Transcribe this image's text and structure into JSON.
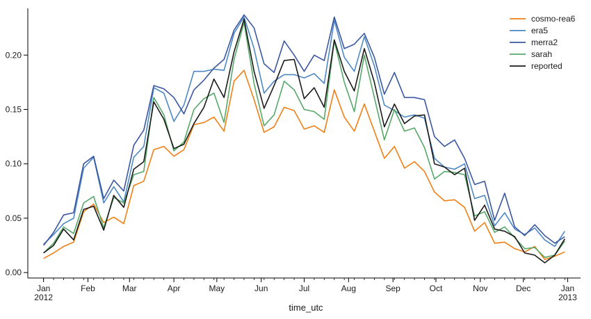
{
  "chart_data": {
    "type": "line",
    "title": "",
    "xlabel": "time_utc",
    "ylabel": "",
    "ylim": [
      -0.005,
      0.243
    ],
    "yticks": [
      0.0,
      0.05,
      0.1,
      0.15,
      0.2
    ],
    "ytick_labels": [
      "0.00",
      "0.05",
      "0.10",
      "0.15",
      "0.20"
    ],
    "xlim": [
      "2011-12-21",
      "2013-01-10"
    ],
    "xticks": [
      {
        "date": "2012-01-01",
        "label": "Jan",
        "sublabel": "2012"
      },
      {
        "date": "2012-02-01",
        "label": "Feb",
        "sublabel": ""
      },
      {
        "date": "2012-03-01",
        "label": "Mar",
        "sublabel": ""
      },
      {
        "date": "2012-04-01",
        "label": "Apr",
        "sublabel": ""
      },
      {
        "date": "2012-05-01",
        "label": "May",
        "sublabel": ""
      },
      {
        "date": "2012-06-01",
        "label": "Jun",
        "sublabel": ""
      },
      {
        "date": "2012-07-01",
        "label": "Jul",
        "sublabel": ""
      },
      {
        "date": "2012-08-01",
        "label": "Aug",
        "sublabel": ""
      },
      {
        "date": "2012-09-01",
        "label": "Sep",
        "sublabel": ""
      },
      {
        "date": "2012-10-01",
        "label": "Oct",
        "sublabel": ""
      },
      {
        "date": "2012-11-01",
        "label": "Nov",
        "sublabel": ""
      },
      {
        "date": "2012-12-01",
        "label": "Dec",
        "sublabel": ""
      },
      {
        "date": "2013-01-01",
        "label": "Jan",
        "sublabel": "2013"
      }
    ],
    "grid": false,
    "legend_position": "top-right",
    "x": [
      "2012-01-01",
      "2012-01-08",
      "2012-01-15",
      "2012-01-22",
      "2012-01-29",
      "2012-02-05",
      "2012-02-12",
      "2012-02-19",
      "2012-02-26",
      "2012-03-04",
      "2012-03-11",
      "2012-03-18",
      "2012-03-25",
      "2012-04-01",
      "2012-04-08",
      "2012-04-15",
      "2012-04-22",
      "2012-04-29",
      "2012-05-06",
      "2012-05-13",
      "2012-05-20",
      "2012-05-27",
      "2012-06-03",
      "2012-06-10",
      "2012-06-17",
      "2012-06-24",
      "2012-07-01",
      "2012-07-08",
      "2012-07-15",
      "2012-07-22",
      "2012-07-29",
      "2012-08-05",
      "2012-08-12",
      "2012-08-19",
      "2012-08-26",
      "2012-09-02",
      "2012-09-09",
      "2012-09-16",
      "2012-09-23",
      "2012-09-30",
      "2012-10-07",
      "2012-10-14",
      "2012-10-21",
      "2012-10-28",
      "2012-11-04",
      "2012-11-11",
      "2012-11-18",
      "2012-11-25",
      "2012-12-02",
      "2012-12-09",
      "2012-12-16",
      "2012-12-23",
      "2012-12-30"
    ],
    "series": [
      {
        "name": "cosmo-rea6",
        "color": "#f07f16",
        "values": [
          0.013,
          0.018,
          0.024,
          0.028,
          0.056,
          0.063,
          0.046,
          0.051,
          0.045,
          0.08,
          0.084,
          0.113,
          0.116,
          0.107,
          0.113,
          0.136,
          0.138,
          0.143,
          0.13,
          0.176,
          0.186,
          0.159,
          0.129,
          0.134,
          0.152,
          0.149,
          0.132,
          0.135,
          0.129,
          0.168,
          0.143,
          0.13,
          0.155,
          0.13,
          0.105,
          0.116,
          0.096,
          0.102,
          0.093,
          0.074,
          0.066,
          0.067,
          0.06,
          0.038,
          0.046,
          0.027,
          0.028,
          0.022,
          0.019,
          0.024,
          0.012,
          0.015,
          0.019
        ]
      },
      {
        "name": "era5",
        "color": "#4d88c4",
        "values": [
          0.026,
          0.035,
          0.045,
          0.05,
          0.096,
          0.106,
          0.064,
          0.079,
          0.065,
          0.106,
          0.116,
          0.17,
          0.165,
          0.139,
          0.154,
          0.185,
          0.185,
          0.187,
          0.186,
          0.22,
          0.235,
          0.206,
          0.165,
          0.176,
          0.182,
          0.182,
          0.179,
          0.183,
          0.174,
          0.232,
          0.198,
          0.185,
          0.217,
          0.19,
          0.154,
          0.149,
          0.143,
          0.145,
          0.142,
          0.105,
          0.097,
          0.095,
          0.1,
          0.068,
          0.071,
          0.043,
          0.055,
          0.04,
          0.035,
          0.041,
          0.03,
          0.024,
          0.038
        ]
      },
      {
        "name": "merra2",
        "color": "#3a56a0",
        "values": [
          0.025,
          0.037,
          0.053,
          0.055,
          0.1,
          0.107,
          0.068,
          0.085,
          0.075,
          0.117,
          0.131,
          0.172,
          0.169,
          0.161,
          0.146,
          0.168,
          0.177,
          0.188,
          0.196,
          0.223,
          0.237,
          0.225,
          0.192,
          0.184,
          0.213,
          0.2,
          0.185,
          0.2,
          0.195,
          0.235,
          0.206,
          0.21,
          0.22,
          0.198,
          0.164,
          0.184,
          0.161,
          0.161,
          0.159,
          0.125,
          0.116,
          0.122,
          0.105,
          0.081,
          0.084,
          0.048,
          0.073,
          0.042,
          0.034,
          0.044,
          0.034,
          0.027,
          0.033
        ]
      },
      {
        "name": "sarah",
        "color": "#55a868",
        "values": [
          0.018,
          0.027,
          0.042,
          0.036,
          0.064,
          0.07,
          0.041,
          0.069,
          0.064,
          0.09,
          0.093,
          0.161,
          0.145,
          0.112,
          0.12,
          0.15,
          0.16,
          0.165,
          0.138,
          0.196,
          0.23,
          0.174,
          0.135,
          0.145,
          0.176,
          0.168,
          0.15,
          0.148,
          0.141,
          0.213,
          0.175,
          0.148,
          0.2,
          0.161,
          0.122,
          0.15,
          0.13,
          0.133,
          0.115,
          0.086,
          0.093,
          0.092,
          0.09,
          0.052,
          0.056,
          0.037,
          0.042,
          0.032,
          0.022,
          0.023,
          0.014,
          0.016,
          0.029
        ]
      },
      {
        "name": "reported",
        "color": "#1a1a1a",
        "values": [
          0.018,
          0.025,
          0.04,
          0.03,
          0.058,
          0.061,
          0.039,
          0.071,
          0.06,
          0.095,
          0.102,
          0.157,
          0.141,
          0.114,
          0.118,
          0.137,
          0.152,
          0.178,
          0.161,
          0.203,
          0.233,
          0.185,
          0.151,
          0.172,
          0.195,
          0.196,
          0.16,
          0.17,
          0.152,
          0.214,
          0.185,
          0.167,
          0.206,
          0.175,
          0.134,
          0.155,
          0.137,
          0.144,
          0.145,
          0.1,
          0.097,
          0.09,
          0.096,
          0.048,
          0.062,
          0.04,
          0.038,
          0.033,
          0.018,
          0.016,
          0.009,
          0.016,
          0.031
        ]
      }
    ]
  }
}
